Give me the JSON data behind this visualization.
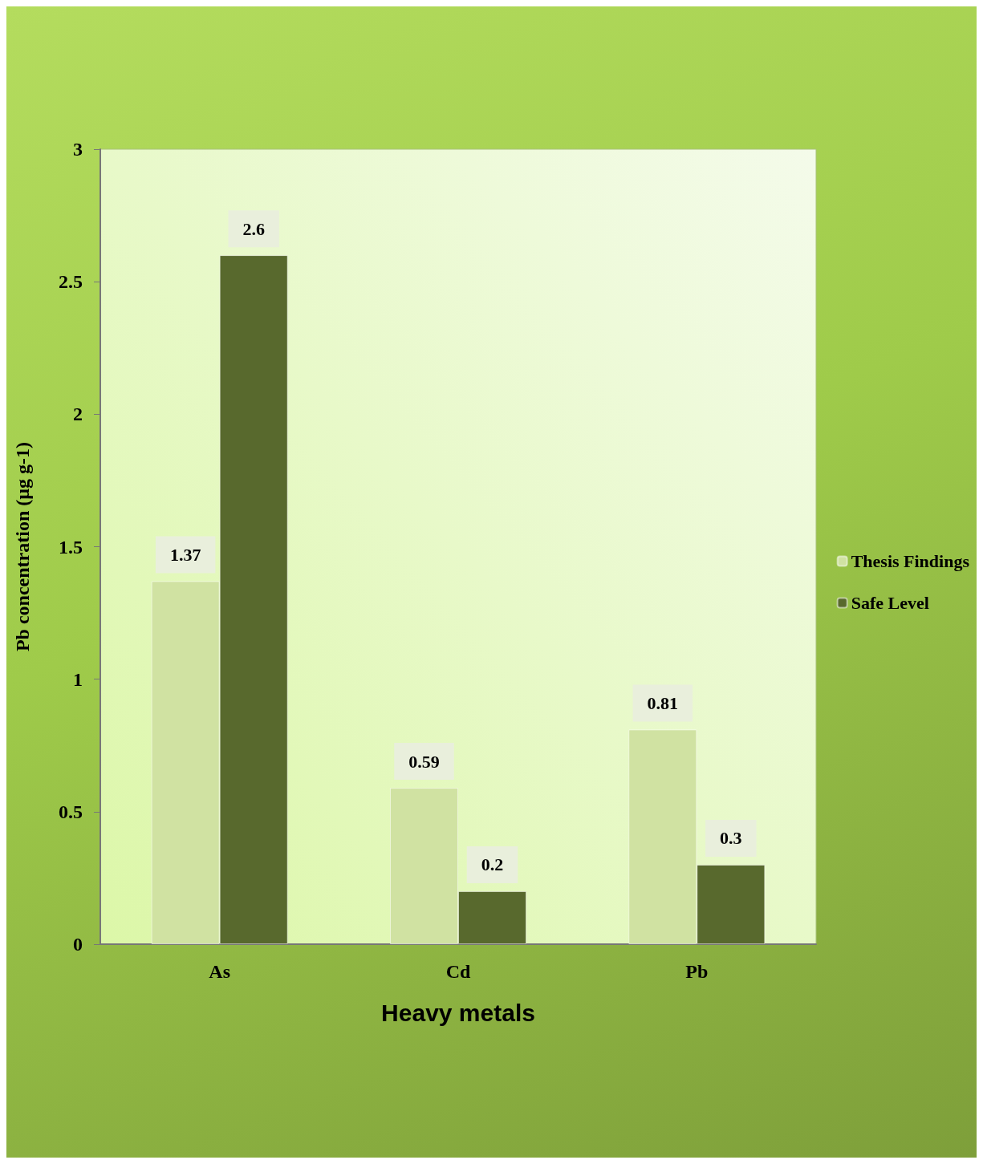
{
  "chart_data": {
    "type": "bar",
    "xlabel": "Heavy metals",
    "ylabel": "Pb concentration (µg g-1)",
    "categories": [
      "As",
      "Cd",
      "Pb"
    ],
    "series": [
      {
        "name": "Thesis Findings",
        "color": "#d0e2a2",
        "values": [
          1.37,
          0.59,
          0.81
        ]
      },
      {
        "name": "Safe Level",
        "color": "#58692d",
        "values": [
          2.6,
          0.2,
          0.3
        ]
      }
    ],
    "ylim": [
      0,
      3
    ],
    "yticks": [
      0,
      0.5,
      1,
      1.5,
      2,
      2.5,
      3
    ],
    "data_labels": true,
    "legend": "right",
    "grid": false
  }
}
